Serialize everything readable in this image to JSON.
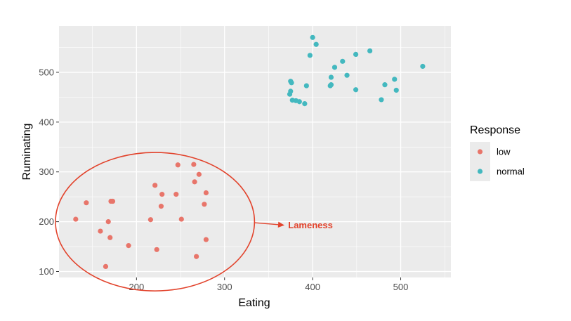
{
  "chart_data": {
    "type": "scatter",
    "xlabel": "Eating",
    "ylabel": "Ruminating",
    "xlim": [
      112,
      557
    ],
    "ylim": [
      88,
      593
    ],
    "x_ticks": [
      200,
      300,
      400,
      500
    ],
    "y_ticks": [
      100,
      200,
      300,
      400,
      500
    ],
    "grid": true,
    "legend": {
      "title": "Response",
      "position": "right",
      "entries": [
        {
          "label": "low",
          "color": "#E8756A"
        },
        {
          "label": "normal",
          "color": "#43B8BF"
        }
      ]
    },
    "panel_color": "#EBEBEB",
    "annotation": {
      "text": "Lameness",
      "color": "#E2432C",
      "ellipse_center": [
        221,
        200
      ],
      "ellipse_radius_x": 113,
      "ellipse_radius_y": 139,
      "arrow_from": [
        334,
        198
      ],
      "arrow_to": [
        368,
        193
      ],
      "text_at": [
        369,
        193
      ]
    },
    "series": [
      {
        "name": "low",
        "color": "#E8756A",
        "points": [
          [
            131,
            205
          ],
          [
            143,
            238
          ],
          [
            159,
            181
          ],
          [
            165,
            110
          ],
          [
            168,
            200
          ],
          [
            170,
            168
          ],
          [
            171,
            241
          ],
          [
            173,
            241
          ],
          [
            191,
            152
          ],
          [
            216,
            204
          ],
          [
            221,
            273
          ],
          [
            223,
            144
          ],
          [
            228,
            231
          ],
          [
            229,
            255
          ],
          [
            245,
            255
          ],
          [
            247,
            314
          ],
          [
            251,
            205
          ],
          [
            266,
            280
          ],
          [
            265,
            315
          ],
          [
            268,
            130
          ],
          [
            271,
            295
          ],
          [
            277,
            235
          ],
          [
            279,
            258
          ],
          [
            279,
            164
          ]
        ]
      },
      {
        "name": "normal",
        "color": "#43B8BF",
        "points": [
          [
            374,
            456
          ],
          [
            375,
            462
          ],
          [
            375,
            482
          ],
          [
            376,
            479
          ],
          [
            377,
            444
          ],
          [
            381,
            443
          ],
          [
            385,
            441
          ],
          [
            391,
            437
          ],
          [
            393,
            473
          ],
          [
            397,
            534
          ],
          [
            400,
            570
          ],
          [
            404,
            556
          ],
          [
            420,
            473
          ],
          [
            421,
            475
          ],
          [
            421,
            490
          ],
          [
            425,
            510
          ],
          [
            434,
            522
          ],
          [
            439,
            494
          ],
          [
            449,
            536
          ],
          [
            449,
            465
          ],
          [
            465,
            543
          ],
          [
            478,
            445
          ],
          [
            482,
            475
          ],
          [
            493,
            486
          ],
          [
            495,
            464
          ],
          [
            525,
            512
          ]
        ]
      }
    ]
  }
}
